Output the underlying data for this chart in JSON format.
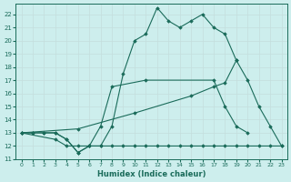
{
  "xlabel": "Humidex (Indice chaleur)",
  "xlim": [
    -0.5,
    23.5
  ],
  "ylim": [
    11,
    22.8
  ],
  "yticks": [
    11,
    12,
    13,
    14,
    15,
    16,
    17,
    18,
    19,
    20,
    21,
    22
  ],
  "xticks": [
    0,
    1,
    2,
    3,
    4,
    5,
    6,
    7,
    8,
    9,
    10,
    11,
    12,
    13,
    14,
    15,
    16,
    17,
    18,
    19,
    20,
    21,
    22,
    23
  ],
  "bg_color": "#cdeeed",
  "line_color": "#1a6b5a",
  "grid_color": "#c4dedd",
  "line1": {
    "x": [
      0,
      1,
      2,
      3,
      4,
      5,
      6,
      7,
      8,
      9,
      10,
      11,
      12,
      13,
      14,
      15,
      16,
      17,
      18,
      19
    ],
    "y": [
      13,
      13,
      13,
      13,
      12.5,
      11.5,
      12,
      12,
      13.5,
      17.5,
      20,
      20.5,
      22.5,
      21.5,
      21,
      21.5,
      22,
      21,
      20.5,
      18.5
    ]
  },
  "line2": {
    "x": [
      0,
      1,
      2,
      3,
      4,
      5,
      6,
      7,
      8,
      11,
      17,
      18,
      19,
      20
    ],
    "y": [
      13,
      13,
      13,
      13,
      12.5,
      11.5,
      12,
      13.5,
      16.5,
      17,
      17,
      15,
      13.5,
      13
    ]
  },
  "line3": {
    "x": [
      0,
      5,
      10,
      15,
      17,
      18,
      19,
      20,
      21,
      22,
      23
    ],
    "y": [
      13,
      13.3,
      14.5,
      15.8,
      16.5,
      16.8,
      18.5,
      17,
      15,
      13.5,
      12
    ]
  },
  "line4": {
    "x": [
      0,
      3,
      4,
      5,
      6,
      7,
      8,
      9,
      10,
      11,
      12,
      13,
      14,
      15,
      16,
      17,
      18,
      19,
      20,
      21,
      22,
      23
    ],
    "y": [
      13,
      12.5,
      12,
      12,
      12,
      12,
      12,
      12,
      12,
      12,
      12,
      12,
      12,
      12,
      12,
      12,
      12,
      12,
      12,
      12,
      12,
      12
    ]
  }
}
